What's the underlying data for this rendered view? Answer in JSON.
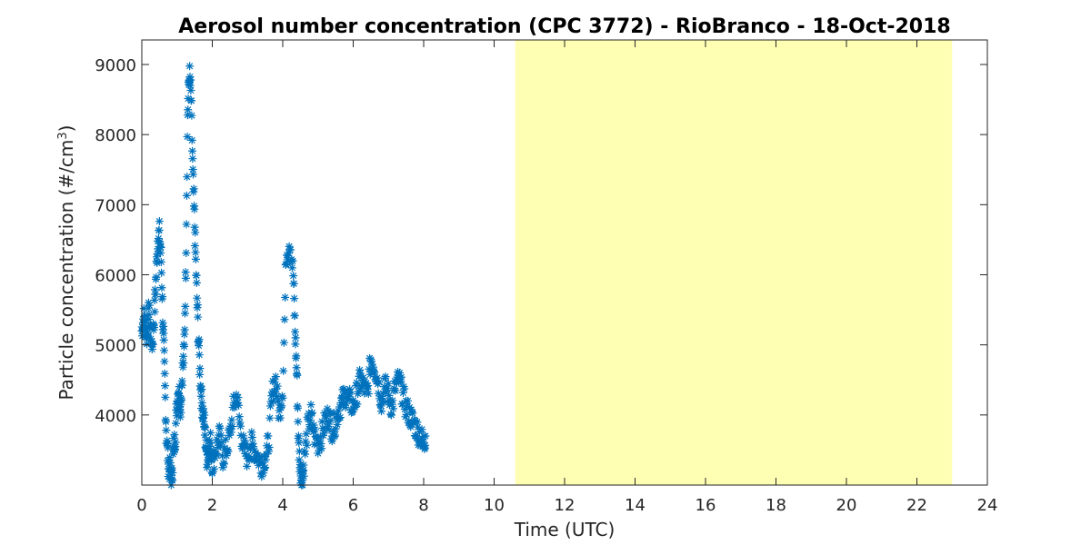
{
  "chart_data": {
    "type": "scatter",
    "title": "Aerosol number concentration (CPC 3772) - RioBranco - 18-Oct-2018",
    "xlabel": "Time (UTC)",
    "ylabel_main": "Particle concentration (#/cm",
    "ylabel_sup": "3",
    "ylabel_close": ")",
    "xlim": [
      0,
      24
    ],
    "ylim": [
      3000,
      9350
    ],
    "xticks": [
      0,
      2,
      4,
      6,
      8,
      10,
      12,
      14,
      16,
      18,
      20,
      22,
      24
    ],
    "yticks": [
      4000,
      5000,
      6000,
      7000,
      8000,
      9000
    ],
    "grid": false,
    "marker": "asterisk",
    "series_color": "#0072BD",
    "highlight_region": {
      "x_start": 10.6,
      "x_end": 23.0,
      "color": "#FFFFB3"
    },
    "series": [
      {
        "x": [
          0.0,
          0.05,
          0.1,
          0.15,
          0.2,
          0.25,
          0.3,
          0.35,
          0.4,
          0.45,
          0.5,
          0.55,
          0.6,
          0.65,
          0.7,
          0.75,
          0.8,
          0.85,
          0.9,
          0.95,
          1.0,
          1.05,
          1.1,
          1.15,
          1.2,
          1.25,
          1.3,
          1.35,
          1.4,
          1.45,
          1.5,
          1.55,
          1.6,
          1.65,
          1.7,
          1.75,
          1.8,
          1.85,
          1.9,
          1.95,
          2.0,
          2.1,
          2.2,
          2.3,
          2.4,
          2.5,
          2.6,
          2.7,
          2.8,
          2.9,
          3.0,
          3.1,
          3.2,
          3.3,
          3.4,
          3.5,
          3.6,
          3.7,
          3.8,
          3.9,
          4.0,
          4.1,
          4.2,
          4.3,
          4.35,
          4.4,
          4.45,
          4.5,
          4.55,
          4.6,
          4.7,
          4.8,
          4.9,
          5.0,
          5.1,
          5.2,
          5.3,
          5.4,
          5.5,
          5.6,
          5.7,
          5.8,
          5.9,
          6.0,
          6.1,
          6.2,
          6.3,
          6.4,
          6.5,
          6.6,
          6.7,
          6.8,
          6.9,
          7.0,
          7.1,
          7.2,
          7.3,
          7.4,
          7.5,
          7.6,
          7.7,
          7.8,
          7.9,
          8.0,
          8.05
        ],
        "y": [
          5200,
          5400,
          5300,
          5100,
          5500,
          5200,
          5000,
          5400,
          5900,
          6500,
          6600,
          6200,
          5300,
          4500,
          3700,
          3300,
          3200,
          3100,
          3500,
          3700,
          4200,
          4400,
          4100,
          4600,
          4900,
          6100,
          8300,
          8900,
          8500,
          7400,
          6700,
          5900,
          5200,
          4600,
          4200,
          4000,
          3700,
          3400,
          3500,
          3600,
          3300,
          3500,
          3700,
          3400,
          3500,
          3700,
          4100,
          4300,
          3800,
          3500,
          3400,
          3600,
          3500,
          3400,
          3300,
          3400,
          3600,
          4300,
          4500,
          4000,
          4400,
          6300,
          6500,
          6000,
          5200,
          4600,
          3600,
          3200,
          3100,
          3300,
          3800,
          4000,
          3700,
          3600,
          3700,
          3900,
          4000,
          3800,
          3900,
          4100,
          4200,
          4300,
          4200,
          4100,
          4300,
          4500,
          4400,
          4300,
          4800,
          4700,
          4500,
          4200,
          4400,
          4300,
          4100,
          4400,
          4500,
          4300,
          4100,
          4000,
          3900,
          3800,
          3700,
          3600,
          3700
        ]
      }
    ]
  }
}
